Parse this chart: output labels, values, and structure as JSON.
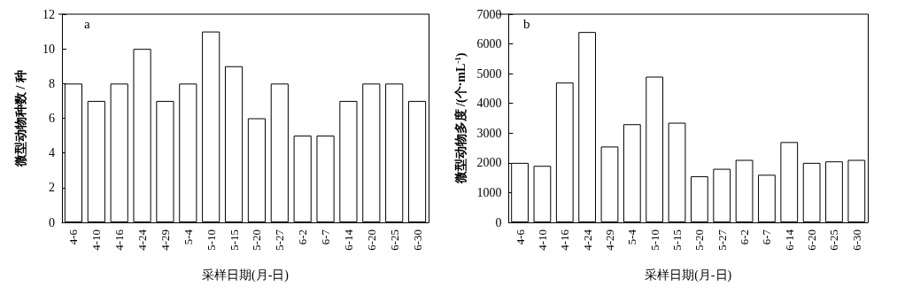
{
  "chart_data": [
    {
      "type": "bar",
      "title": "a",
      "xlabel": "采样日期(月-日)",
      "ylabel": "微型动物种数 / 种",
      "categories": [
        "4-6",
        "4-10",
        "4-16",
        "4-24",
        "4-29",
        "5-4",
        "5-10",
        "5-15",
        "5-20",
        "5-27",
        "6-2",
        "6-7",
        "6-14",
        "6-20",
        "6-25",
        "6-30"
      ],
      "values": [
        8,
        7,
        8,
        10,
        7,
        8,
        11,
        9,
        6,
        8,
        5,
        5,
        7,
        8,
        8,
        7
      ],
      "color": "#ffffff",
      "ylim": [
        0,
        12
      ],
      "yticks": [
        0,
        2,
        4,
        6,
        8,
        10,
        12
      ],
      "grid": false
    },
    {
      "type": "bar",
      "title": "b",
      "xlabel": "采样日期(月-日)",
      "ylabel": "微型动物多度 /(个·mL$^{-1}$)",
      "categories": [
        "4-6",
        "4-10",
        "4-16",
        "4-24",
        "4-29",
        "5-4",
        "5-10",
        "5-15",
        "5-20",
        "5-27",
        "6-2",
        "6-7",
        "6-14",
        "6-20",
        "6-25",
        "6-30"
      ],
      "values": [
        2000,
        1900,
        4700,
        6400,
        2550,
        3300,
        4900,
        3350,
        1550,
        1800,
        2100,
        1600,
        2700,
        2000,
        2050,
        2100
      ],
      "color": "#ffffff",
      "ylim": [
        0,
        7000
      ],
      "yticks": [
        0,
        1000,
        2000,
        3000,
        4000,
        5000,
        6000,
        7000
      ],
      "grid": false
    }
  ]
}
